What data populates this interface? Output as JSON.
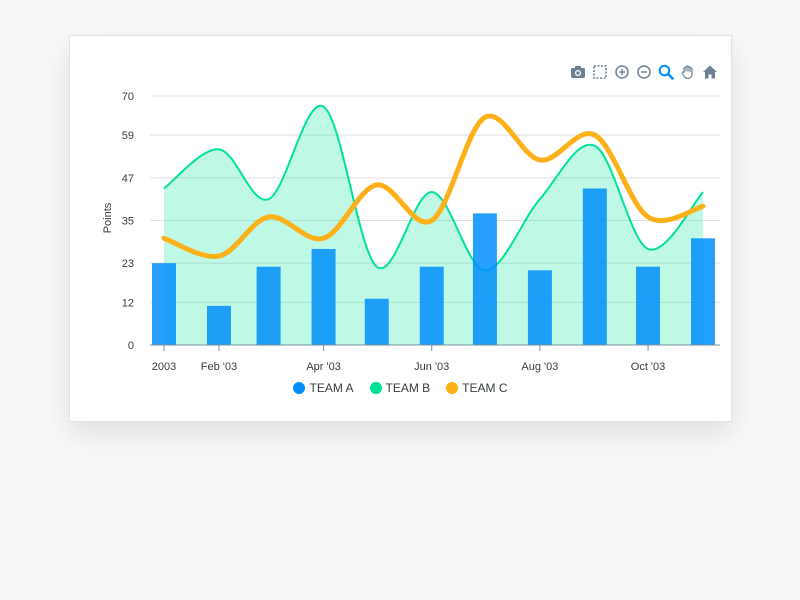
{
  "colors": {
    "team_a": "#008ffb",
    "team_b": "#00e396",
    "team_c": "#feb019",
    "toolbar": "#6e8192",
    "toolbar_active": "#008ffb"
  },
  "toolbar": {
    "items": [
      {
        "icon": "camera-icon",
        "name": "download-button"
      },
      {
        "icon": "selection-icon",
        "name": "selection-zoom-button"
      },
      {
        "icon": "zoom-in-icon",
        "name": "zoom-in-button"
      },
      {
        "icon": "zoom-out-icon",
        "name": "zoom-out-button"
      },
      {
        "icon": "magnifier-icon",
        "name": "zoom-button"
      },
      {
        "icon": "hand-icon",
        "name": "pan-button"
      },
      {
        "icon": "home-icon",
        "name": "reset-zoom-button"
      }
    ]
  },
  "chart_data": {
    "type": "line",
    "title": "",
    "ylabel": "Points",
    "xlabel": "",
    "ylim": [
      0,
      70
    ],
    "yticks": [
      0,
      12,
      23,
      35,
      47,
      59,
      70
    ],
    "x": [
      "01/01/2003",
      "02/01/2003",
      "03/01/2003",
      "04/01/2003",
      "05/01/2003",
      "06/01/2003",
      "07/01/2003",
      "08/01/2003",
      "09/01/2003",
      "10/01/2003",
      "11/01/2003"
    ],
    "xtick_labels": [
      {
        "date": "01/01/2003",
        "label": "2003"
      },
      {
        "date": "02/01/2003",
        "label": "Feb '03"
      },
      {
        "date": "04/01/2003",
        "label": "Apr '03"
      },
      {
        "date": "06/01/2003",
        "label": "Jun '03"
      },
      {
        "date": "08/01/2003",
        "label": "Aug '03"
      },
      {
        "date": "10/01/2003",
        "label": "Oct '03"
      }
    ],
    "series": [
      {
        "name": "TEAM A",
        "kind": "column",
        "values": [
          23,
          11,
          22,
          27,
          13,
          22,
          37,
          21,
          44,
          22,
          30
        ]
      },
      {
        "name": "TEAM B",
        "kind": "area",
        "values": [
          44,
          55,
          41,
          67,
          22,
          43,
          21,
          41,
          56,
          27,
          43
        ]
      },
      {
        "name": "TEAM C",
        "kind": "line",
        "values": [
          30,
          25,
          36,
          30,
          45,
          35,
          64,
          52,
          59,
          36,
          39
        ]
      }
    ],
    "grid": true,
    "legend": "bottom-center"
  }
}
